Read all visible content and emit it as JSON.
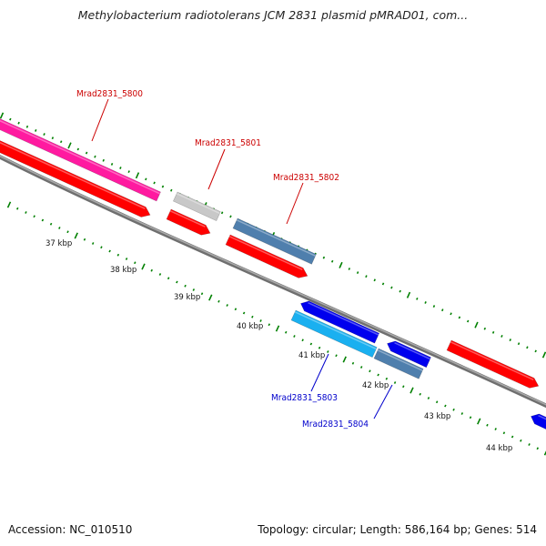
{
  "title": "Methylobacterium radiotolerans JCM 2831 plasmid pMRAD01, com...",
  "footer": {
    "accession": "Accession: NC_010510",
    "summary": "Topology: circular; Length: 586,164 bp; Genes: 514"
  },
  "colors": {
    "forward_cds": "#ff0000",
    "pink_feature": "#ff1aa0",
    "grey_feature": "#c8c8c8",
    "steelblue_feature": "#4f7fad",
    "blue_feature": "#0000ee",
    "lightblue_feature": "#1ab0f0",
    "backbone": "#808080",
    "tick": "#008000",
    "label_forward": "#cc0000",
    "label_reverse": "#0000cc"
  },
  "kbp_labels": [
    "37 kbp",
    "38 kbp",
    "39 kbp",
    "40 kbp",
    "41 kbp",
    "42 kbp",
    "43 kbp",
    "44 kbp"
  ],
  "gene_labels": {
    "g5800": "Mrad2831_5800",
    "g5801": "Mrad2831_5801",
    "g5802": "Mrad2831_5802",
    "g5803": "Mrad2831_5803",
    "g5804": "Mrad2831_5804"
  }
}
